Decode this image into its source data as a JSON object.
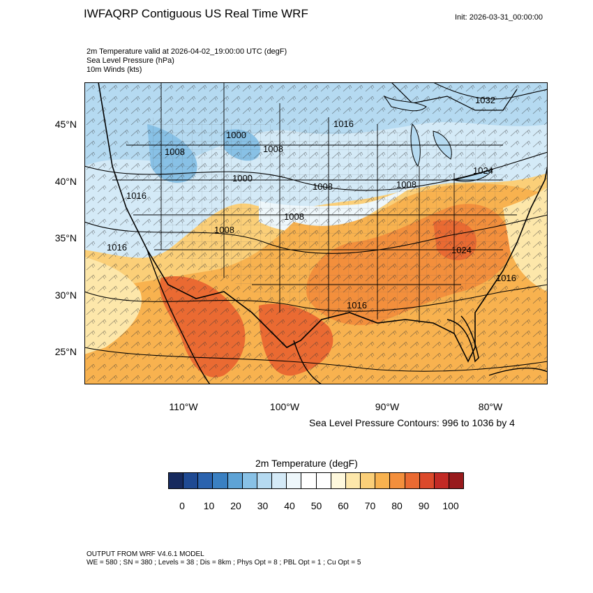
{
  "header": {
    "title": "IWFAQRP Contiguous US Real Time WRF",
    "init": "Init: 2026-03-31_00:00:00",
    "subtitle_lines": [
      "2m Temperature valid at 2026-04-02_19:00:00 UTC   (degF)",
      "Sea Level Pressure   (hPa)",
      "10m Winds   (kts)"
    ]
  },
  "map": {
    "lat_labels": [
      "45°N",
      "40°N",
      "35°N",
      "30°N",
      "25°N"
    ],
    "lon_labels": [
      "110°W",
      "100°W",
      "90°W",
      "80°W"
    ],
    "pressure_labels": [
      "1032",
      "1016",
      "1000",
      "1008",
      "1000",
      "1008",
      "1008",
      "1024",
      "1016",
      "1008",
      "1008",
      "1016",
      "1024",
      "1016",
      "1008",
      "1016"
    ],
    "contour_note": "Sea Level Pressure Contours: 996 to 1036 by 4"
  },
  "colorbar": {
    "title": "2m Temperature  (degF)",
    "colors": [
      "#172a5e",
      "#1f4a93",
      "#2b63ae",
      "#3a80c2",
      "#5ea3d6",
      "#88c1e6",
      "#b5daf1",
      "#d4eaf7",
      "#eef7fb",
      "#ffffff",
      "#fefefe",
      "#fef8dc",
      "#fde7aa",
      "#fbcf78",
      "#f8b24f",
      "#f38f3c",
      "#ea6a32",
      "#dc4a2b",
      "#c22a25",
      "#981a1c"
    ],
    "ticks": [
      "0",
      "10",
      "20",
      "30",
      "40",
      "50",
      "60",
      "70",
      "80",
      "90",
      "100"
    ]
  },
  "footer": {
    "line1": "OUTPUT FROM WRF V4.6.1 MODEL",
    "line2": "WE = 580 ; SN = 380 ; Levels = 38 ; Dis = 8km ; Phys Opt = 8 ; PBL Opt = 1 ; Cu Opt = 5"
  }
}
